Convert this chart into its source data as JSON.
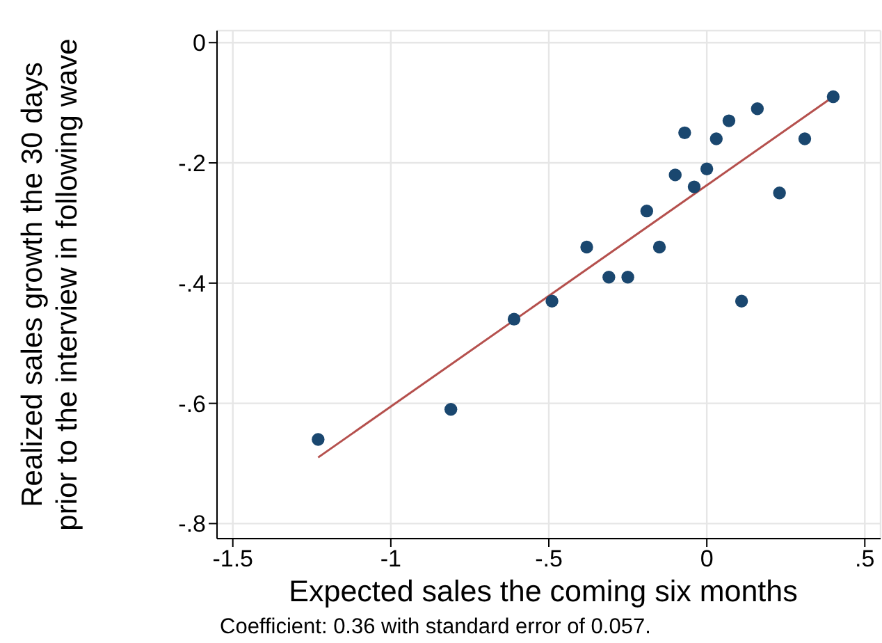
{
  "chart_data": {
    "type": "scatter",
    "xlabel": "Expected sales the coming six months",
    "ylabel": "Realized sales growth the 30 days\nprior to the interview in following wave",
    "annotations": [
      "Coefficient: 0.36 with standard error of 0.057."
    ],
    "xlim": [
      -1.55,
      0.55
    ],
    "ylim": [
      -0.825,
      0.02
    ],
    "xticks": [
      -1.5,
      -1,
      {
        "value": -0.5,
        "label": "-.5"
      },
      0,
      {
        "value": 0.5,
        "label": ".5"
      }
    ],
    "yticks": [
      {
        "value": -0.8,
        "label": "-.8"
      },
      {
        "value": -0.6,
        "label": "-.6"
      },
      {
        "value": -0.4,
        "label": "-.4"
      },
      {
        "value": -0.2,
        "label": "-.2"
      },
      0
    ],
    "grid": true,
    "marker": "circle",
    "series": [
      {
        "type": "scatter",
        "color": "#1a476f",
        "x": [
          -1.23,
          -0.81,
          -0.61,
          -0.49,
          -0.38,
          -0.31,
          -0.25,
          -0.19,
          -0.15,
          -0.1,
          -0.07,
          -0.04,
          0.0,
          0.03,
          0.07,
          0.11,
          0.16,
          0.23,
          0.31,
          0.4
        ],
        "values": [
          -0.66,
          -0.61,
          -0.46,
          -0.43,
          -0.34,
          -0.39,
          -0.39,
          -0.28,
          -0.34,
          -0.22,
          -0.15,
          -0.24,
          -0.21,
          -0.16,
          -0.13,
          -0.43,
          -0.11,
          -0.25,
          -0.16,
          -0.09
        ]
      },
      {
        "type": "line",
        "color": "#b5504d",
        "marker": "none",
        "x": [
          -1.23,
          0.4
        ],
        "values": [
          -0.69,
          -0.09
        ]
      }
    ]
  }
}
